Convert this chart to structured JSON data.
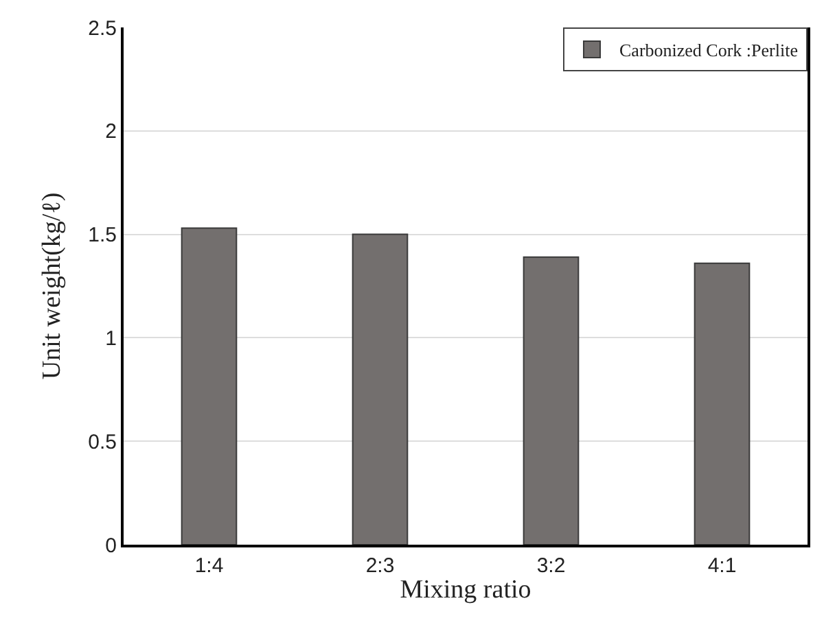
{
  "chart_data": {
    "type": "bar",
    "xlabel": "Mixing ratio",
    "ylabel": "Unit weight(kg/ℓ)",
    "categories": [
      "1:4",
      "2:3",
      "3:2",
      "4:1"
    ],
    "series": [
      {
        "name": "Carbonized Cork :Perlite",
        "color": "#736f6e",
        "values": [
          1.53,
          1.5,
          1.39,
          1.36
        ]
      }
    ],
    "ylim": [
      0,
      2.5
    ],
    "yticks": [
      0,
      0.5,
      1,
      1.5,
      2,
      2.5
    ],
    "grid": "y",
    "legend": "top right"
  }
}
